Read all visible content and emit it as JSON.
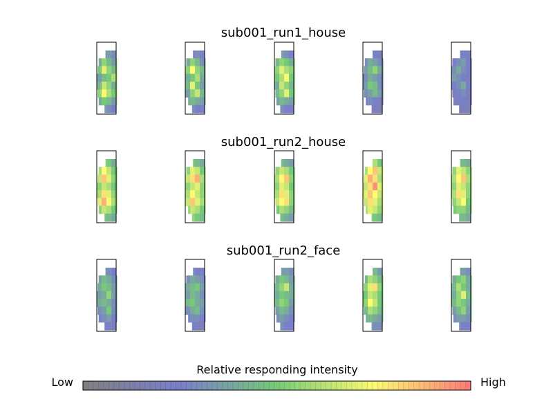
{
  "chart_data": {
    "type": "heatmap",
    "description_units": "relative responding intensity, 0 = Low, 1 = High",
    "panels": [
      {
        "title": "sub001_run1_house",
        "slices": [
          {
            "shape": "a",
            "intensity": [
              [
                0.25,
                0.3,
                0.35,
                0.3
              ],
              [
                0.4,
                0.55,
                0.45,
                0.35
              ],
              [
                0.5,
                0.7,
                0.55,
                0.45
              ],
              [
                0.35,
                0.45,
                0.5,
                0.6
              ],
              [
                0.45,
                0.65,
                0.55,
                0.4
              ],
              [
                0.55,
                0.75,
                0.6,
                0.5
              ],
              [
                0.4,
                0.5,
                0.45,
                0.35
              ],
              [
                0.3,
                0.35,
                0.3,
                0.25
              ]
            ]
          },
          {
            "shape": "b",
            "intensity": [
              [
                0.25,
                0.25,
                0.3,
                0.25
              ],
              [
                0.4,
                0.55,
                0.45,
                0.3
              ],
              [
                0.55,
                0.75,
                0.55,
                0.45
              ],
              [
                0.4,
                0.5,
                0.6,
                0.4
              ],
              [
                0.45,
                0.7,
                0.5,
                0.35
              ],
              [
                0.35,
                0.55,
                0.65,
                0.45
              ],
              [
                0.4,
                0.45,
                0.4,
                0.35
              ],
              [
                0.25,
                0.3,
                0.25,
                0.25
              ]
            ]
          },
          {
            "shape": "c",
            "intensity": [
              [
                0.3,
                0.35,
                0.3,
                0.25
              ],
              [
                0.45,
                0.55,
                0.5,
                0.4
              ],
              [
                0.55,
                0.7,
                0.6,
                0.55
              ],
              [
                0.5,
                0.6,
                0.75,
                0.5
              ],
              [
                0.4,
                0.65,
                0.55,
                0.45
              ],
              [
                0.45,
                0.55,
                0.7,
                0.5
              ],
              [
                0.35,
                0.45,
                0.4,
                0.35
              ],
              [
                0.25,
                0.3,
                0.25,
                0.25
              ]
            ]
          },
          {
            "shape": "d",
            "intensity": [
              [
                0.2,
                0.25,
                0.25,
                0.2
              ],
              [
                0.3,
                0.4,
                0.35,
                0.3
              ],
              [
                0.35,
                0.45,
                0.55,
                0.4
              ],
              [
                0.3,
                0.4,
                0.35,
                0.3
              ],
              [
                0.35,
                0.5,
                0.45,
                0.3
              ],
              [
                0.3,
                0.35,
                0.45,
                0.35
              ],
              [
                0.25,
                0.3,
                0.25,
                0.2
              ],
              [
                0.2,
                0.25,
                0.2,
                0.2
              ]
            ]
          },
          {
            "shape": "e",
            "intensity": [
              [
                0.2,
                0.2,
                0.25,
                0.2
              ],
              [
                0.25,
                0.3,
                0.35,
                0.25
              ],
              [
                0.3,
                0.4,
                0.3,
                0.25
              ],
              [
                0.35,
                0.3,
                0.25,
                0.2
              ],
              [
                0.25,
                0.3,
                0.4,
                0.25
              ],
              [
                0.2,
                0.25,
                0.3,
                0.2
              ],
              [
                0.2,
                0.2,
                0.25,
                0.2
              ],
              [
                0.2,
                0.2,
                0.2,
                0.2
              ]
            ]
          }
        ]
      },
      {
        "title": "sub001_run2_house",
        "slices": [
          {
            "shape": "a",
            "intensity": [
              [
                0.45,
                0.55,
                0.5,
                0.4
              ],
              [
                0.6,
                0.75,
                0.65,
                0.5
              ],
              [
                0.65,
                0.85,
                0.7,
                0.55
              ],
              [
                0.55,
                0.65,
                0.6,
                0.5
              ],
              [
                0.6,
                0.8,
                0.7,
                0.55
              ],
              [
                0.7,
                0.9,
                0.75,
                0.6
              ],
              [
                0.55,
                0.65,
                0.6,
                0.5
              ],
              [
                0.45,
                0.5,
                0.45,
                0.4
              ]
            ]
          },
          {
            "shape": "b",
            "intensity": [
              [
                0.45,
                0.5,
                0.45,
                0.4
              ],
              [
                0.55,
                0.7,
                0.65,
                0.5
              ],
              [
                0.65,
                0.8,
                0.9,
                0.6
              ],
              [
                0.55,
                0.65,
                0.7,
                0.55
              ],
              [
                0.6,
                0.75,
                0.65,
                0.55
              ],
              [
                0.65,
                0.85,
                0.7,
                0.6
              ],
              [
                0.55,
                0.65,
                0.6,
                0.5
              ],
              [
                0.45,
                0.55,
                0.5,
                0.45
              ]
            ]
          },
          {
            "shape": "c",
            "intensity": [
              [
                0.4,
                0.45,
                0.4,
                0.35
              ],
              [
                0.55,
                0.65,
                0.6,
                0.5
              ],
              [
                0.6,
                0.75,
                0.85,
                0.55
              ],
              [
                0.55,
                0.7,
                0.65,
                0.5
              ],
              [
                0.6,
                0.8,
                0.7,
                0.55
              ],
              [
                0.65,
                0.75,
                0.8,
                0.55
              ],
              [
                0.5,
                0.6,
                0.55,
                0.45
              ],
              [
                0.4,
                0.45,
                0.4,
                0.35
              ]
            ]
          },
          {
            "shape": "d",
            "intensity": [
              [
                0.5,
                0.55,
                0.6,
                0.5
              ],
              [
                0.6,
                0.75,
                0.85,
                0.65
              ],
              [
                0.7,
                0.9,
                0.8,
                0.6
              ],
              [
                0.65,
                0.8,
                0.95,
                0.7
              ],
              [
                0.7,
                0.85,
                0.75,
                0.65
              ],
              [
                0.65,
                0.8,
                0.7,
                0.6
              ],
              [
                0.6,
                0.7,
                0.65,
                0.55
              ],
              [
                0.5,
                0.55,
                0.5,
                0.45
              ]
            ]
          },
          {
            "shape": "e",
            "intensity": [
              [
                0.45,
                0.5,
                0.45,
                0.4
              ],
              [
                0.55,
                0.7,
                0.65,
                0.55
              ],
              [
                0.6,
                0.75,
                0.85,
                0.6
              ],
              [
                0.55,
                0.7,
                0.65,
                0.55
              ],
              [
                0.6,
                0.8,
                0.7,
                0.55
              ],
              [
                0.55,
                0.65,
                0.75,
                0.5
              ],
              [
                0.5,
                0.55,
                0.55,
                0.45
              ],
              [
                0.45,
                0.45,
                0.45,
                0.4
              ]
            ]
          }
        ]
      },
      {
        "title": "sub001_run2_face",
        "slices": [
          {
            "shape": "a",
            "intensity": [
              [
                0.25,
                0.3,
                0.3,
                0.25
              ],
              [
                0.35,
                0.45,
                0.4,
                0.3
              ],
              [
                0.4,
                0.5,
                0.45,
                0.35
              ],
              [
                0.35,
                0.4,
                0.55,
                0.35
              ],
              [
                0.4,
                0.45,
                0.4,
                0.3
              ],
              [
                0.3,
                0.35,
                0.5,
                0.3
              ],
              [
                0.25,
                0.3,
                0.35,
                0.25
              ],
              [
                0.2,
                0.25,
                0.25,
                0.2
              ]
            ]
          },
          {
            "shape": "b",
            "intensity": [
              [
                0.25,
                0.3,
                0.25,
                0.25
              ],
              [
                0.3,
                0.4,
                0.35,
                0.3
              ],
              [
                0.4,
                0.45,
                0.5,
                0.35
              ],
              [
                0.35,
                0.45,
                0.4,
                0.3
              ],
              [
                0.45,
                0.5,
                0.4,
                0.35
              ],
              [
                0.3,
                0.4,
                0.45,
                0.3
              ],
              [
                0.25,
                0.3,
                0.3,
                0.25
              ],
              [
                0.2,
                0.25,
                0.2,
                0.2
              ]
            ]
          },
          {
            "shape": "c",
            "intensity": [
              [
                0.3,
                0.35,
                0.35,
                0.3
              ],
              [
                0.4,
                0.5,
                0.45,
                0.35
              ],
              [
                0.45,
                0.55,
                0.65,
                0.4
              ],
              [
                0.4,
                0.5,
                0.45,
                0.4
              ],
              [
                0.45,
                0.55,
                0.5,
                0.35
              ],
              [
                0.35,
                0.45,
                0.4,
                0.3
              ],
              [
                0.3,
                0.35,
                0.3,
                0.25
              ],
              [
                0.25,
                0.3,
                0.25,
                0.25
              ]
            ]
          },
          {
            "shape": "d",
            "intensity": [
              [
                0.35,
                0.4,
                0.45,
                0.35
              ],
              [
                0.45,
                0.6,
                0.55,
                0.45
              ],
              [
                0.55,
                0.7,
                0.8,
                0.55
              ],
              [
                0.5,
                0.65,
                0.6,
                0.5
              ],
              [
                0.55,
                0.75,
                0.65,
                0.5
              ],
              [
                0.45,
                0.6,
                0.55,
                0.45
              ],
              [
                0.4,
                0.45,
                0.4,
                0.35
              ],
              [
                0.3,
                0.35,
                0.3,
                0.3
              ]
            ]
          },
          {
            "shape": "e",
            "intensity": [
              [
                0.3,
                0.35,
                0.35,
                0.3
              ],
              [
                0.4,
                0.5,
                0.55,
                0.4
              ],
              [
                0.45,
                0.6,
                0.5,
                0.4
              ],
              [
                0.4,
                0.55,
                0.7,
                0.45
              ],
              [
                0.45,
                0.55,
                0.5,
                0.4
              ],
              [
                0.35,
                0.45,
                0.55,
                0.35
              ],
              [
                0.3,
                0.35,
                0.35,
                0.3
              ],
              [
                0.25,
                0.3,
                0.25,
                0.25
              ]
            ]
          }
        ]
      }
    ],
    "colorbar": {
      "title": "Relative responding intensity",
      "low_label": "Low",
      "high_label": "High",
      "range": [
        0,
        1
      ],
      "colors": [
        "#808080",
        "#7a7fc9",
        "#77c97a",
        "#fbfb74",
        "#fa7a7a"
      ],
      "n_segments": 75
    }
  }
}
